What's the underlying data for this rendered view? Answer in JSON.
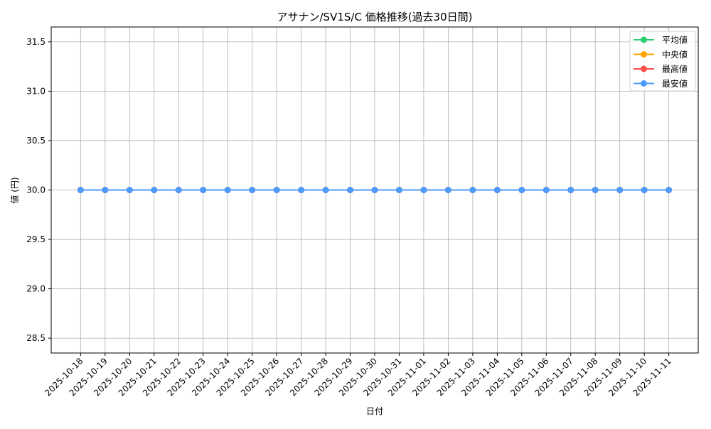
{
  "chart_data": {
    "type": "line",
    "title": "アサナン/SV1S/C 価格推移(過去30日間)",
    "xlabel": "日付",
    "ylabel": "値 (円)",
    "categories": [
      "2025-10-18",
      "2025-10-19",
      "2025-10-20",
      "2025-10-21",
      "2025-10-22",
      "2025-10-23",
      "2025-10-24",
      "2025-10-25",
      "2025-10-26",
      "2025-10-27",
      "2025-10-28",
      "2025-10-29",
      "2025-10-30",
      "2025-10-31",
      "2025-11-01",
      "2025-11-02",
      "2025-11-03",
      "2025-11-04",
      "2025-11-05",
      "2025-11-06",
      "2025-11-07",
      "2025-11-08",
      "2025-11-09",
      "2025-11-10",
      "2025-11-11"
    ],
    "series": [
      {
        "name": "平均値",
        "color": "#2ecc71",
        "values": [
          30,
          30,
          30,
          30,
          30,
          30,
          30,
          30,
          30,
          30,
          30,
          30,
          30,
          30,
          30,
          30,
          30,
          30,
          30,
          30,
          30,
          30,
          30,
          30,
          30
        ]
      },
      {
        "name": "中央値",
        "color": "#ffa500",
        "values": [
          30,
          30,
          30,
          30,
          30,
          30,
          30,
          30,
          30,
          30,
          30,
          30,
          30,
          30,
          30,
          30,
          30,
          30,
          30,
          30,
          30,
          30,
          30,
          30,
          30
        ]
      },
      {
        "name": "最高値",
        "color": "#ff4d4d",
        "values": [
          30,
          30,
          30,
          30,
          30,
          30,
          30,
          30,
          30,
          30,
          30,
          30,
          30,
          30,
          30,
          30,
          30,
          30,
          30,
          30,
          30,
          30,
          30,
          30,
          30
        ]
      },
      {
        "name": "最安値",
        "color": "#4d9bff",
        "values": [
          30,
          30,
          30,
          30,
          30,
          30,
          30,
          30,
          30,
          30,
          30,
          30,
          30,
          30,
          30,
          30,
          30,
          30,
          30,
          30,
          30,
          30,
          30,
          30,
          30
        ]
      }
    ],
    "yticks": [
      "28.5",
      "29.0",
      "29.5",
      "30.0",
      "30.5",
      "31.0",
      "31.5"
    ],
    "ylim": [
      28.35,
      31.65
    ],
    "grid": true,
    "legend": "top-right"
  }
}
